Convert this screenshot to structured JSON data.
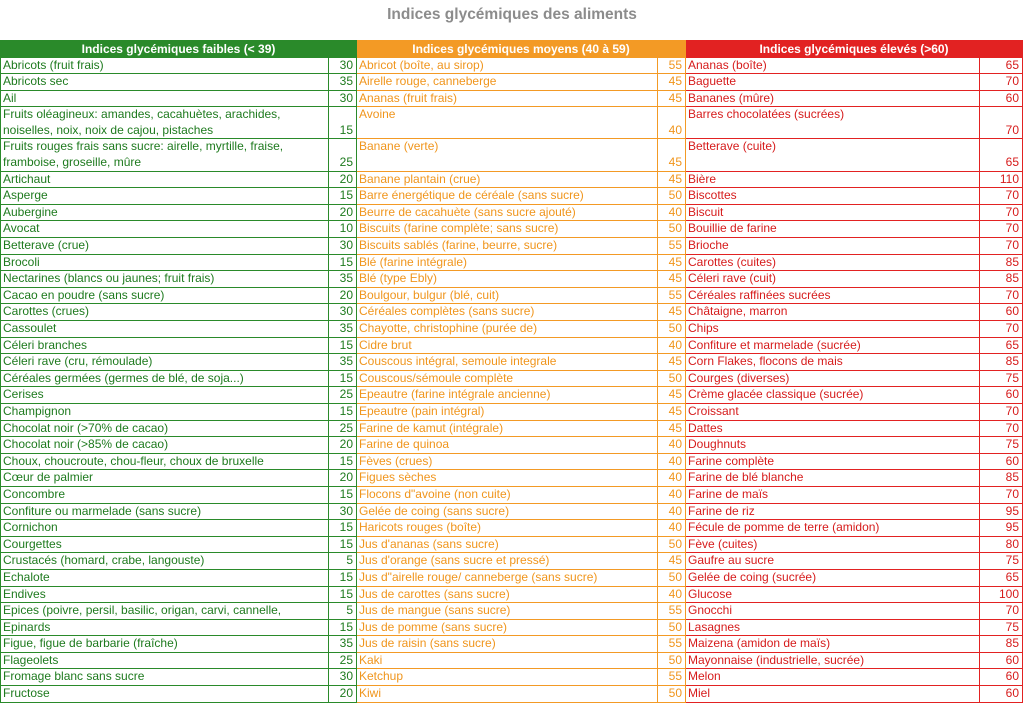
{
  "title": "Indices glycémiques des aliments",
  "colors": {
    "low": "#2a8a2a",
    "medium": "#f39a25",
    "high": "#e22222"
  },
  "headers": {
    "low": "Indices glycémiques faibles (< 39)",
    "medium": "Indices glycémiques moyens (40 à 59)",
    "high": "Indices glycémiques élevés (>60)"
  },
  "rows": [
    {
      "h": 1,
      "low": {
        "name": "Abricots (fruit frais)",
        "value": "30"
      },
      "medium": {
        "name": "Abricot (boîte, au sirop)",
        "value": "55"
      },
      "high": {
        "name": "Ananas (boîte)",
        "value": "65"
      }
    },
    {
      "h": 1,
      "low": {
        "name": "Abricots sec",
        "value": "35"
      },
      "medium": {
        "name": "Airelle rouge, canneberge",
        "value": "45"
      },
      "high": {
        "name": "Baguette",
        "value": "70"
      }
    },
    {
      "h": 1,
      "low": {
        "name": "Ail",
        "value": "30"
      },
      "medium": {
        "name": "Ananas (fruit frais)",
        "value": "45"
      },
      "high": {
        "name": "Bananes (mûre)",
        "value": "60"
      }
    },
    {
      "h": 2,
      "low": {
        "name": "Fruits oléagineux: amandes, cacahuètes, arachides, noiselles, noix, noix de cajou, pistaches",
        "value": "15"
      },
      "medium": {
        "name": "Avoine",
        "value": "40"
      },
      "high": {
        "name": "Barres chocolatées (sucrées)",
        "value": "70"
      }
    },
    {
      "h": 2,
      "low": {
        "name": "Fruits rouges frais sans sucre: airelle, myrtille, fraise, framboise, groseille, mûre",
        "value": "25"
      },
      "medium": {
        "name": "Banane (verte)",
        "value": "45"
      },
      "high": {
        "name": "Betterave (cuite)",
        "value": "65"
      }
    },
    {
      "h": 1,
      "low": {
        "name": "Artichaut",
        "value": "20"
      },
      "medium": {
        "name": "Banane plantain (crue)",
        "value": "45"
      },
      "high": {
        "name": "Bière",
        "value": "110"
      }
    },
    {
      "h": 1,
      "low": {
        "name": "Asperge",
        "value": "15"
      },
      "medium": {
        "name": "Barre énergétique de céréale (sans sucre)",
        "value": "50"
      },
      "high": {
        "name": "Biscottes",
        "value": "70"
      }
    },
    {
      "h": 1,
      "low": {
        "name": "Aubergine",
        "value": "20"
      },
      "medium": {
        "name": "Beurre de cacahuète (sans sucre ajouté)",
        "value": "40"
      },
      "high": {
        "name": "Biscuit",
        "value": "70"
      }
    },
    {
      "h": 1,
      "low": {
        "name": "Avocat",
        "value": "10"
      },
      "medium": {
        "name": "Biscuits (farine complète; sans sucre)",
        "value": "50"
      },
      "high": {
        "name": "Bouillie de farine",
        "value": "70"
      }
    },
    {
      "h": 1,
      "low": {
        "name": "Betterave (crue)",
        "value": "30"
      },
      "medium": {
        "name": "Biscuits sablés (farine, beurre, sucre)",
        "value": "55"
      },
      "high": {
        "name": "Brioche",
        "value": "70"
      }
    },
    {
      "h": 1,
      "low": {
        "name": "Brocoli",
        "value": "15"
      },
      "medium": {
        "name": "Blé (farine intégrale)",
        "value": "45"
      },
      "high": {
        "name": "Carottes (cuites)",
        "value": "85"
      }
    },
    {
      "h": 1,
      "low": {
        "name": "Nectarines (blancs ou jaunes; fruit frais)",
        "value": "35"
      },
      "medium": {
        "name": "Blé (type Ebly)",
        "value": "45"
      },
      "high": {
        "name": "Céleri rave (cuit)",
        "value": "85"
      }
    },
    {
      "h": 1,
      "low": {
        "name": "Cacao en poudre (sans sucre)",
        "value": "20"
      },
      "medium": {
        "name": "Boulgour, bulgur (blé, cuit)",
        "value": "55"
      },
      "high": {
        "name": "Céréales raffinées sucrées",
        "value": "70"
      }
    },
    {
      "h": 1,
      "low": {
        "name": "Carottes (crues)",
        "value": "30"
      },
      "medium": {
        "name": "Céréales complètes (sans sucre)",
        "value": "45"
      },
      "high": {
        "name": "Châtaigne, marron",
        "value": "60"
      }
    },
    {
      "h": 1,
      "low": {
        "name": "Cassoulet",
        "value": "35"
      },
      "medium": {
        "name": "Chayotte, christophine (purée de)",
        "value": "50"
      },
      "high": {
        "name": "Chips",
        "value": "70"
      }
    },
    {
      "h": 1,
      "low": {
        "name": "Céleri branches",
        "value": "15"
      },
      "medium": {
        "name": "Cidre brut",
        "value": "40"
      },
      "high": {
        "name": "Confiture et marmelade (sucrée)",
        "value": "65"
      }
    },
    {
      "h": 1,
      "low": {
        "name": "Céleri rave (cru, rémoulade)",
        "value": "35"
      },
      "medium": {
        "name": "Couscous intégral, semoule integrale",
        "value": "45"
      },
      "high": {
        "name": "Corn Flakes, flocons de mais",
        "value": "85"
      }
    },
    {
      "h": 1,
      "low": {
        "name": "Céréales germées (germes de blé, de soja...)",
        "value": "15"
      },
      "medium": {
        "name": "Couscous/sémoule complète",
        "value": "50"
      },
      "high": {
        "name": "Courges (diverses)",
        "value": "75"
      }
    },
    {
      "h": 1,
      "low": {
        "name": "Cerises",
        "value": "25"
      },
      "medium": {
        "name": "Epeautre (farine intégrale ancienne)",
        "value": "45"
      },
      "high": {
        "name": "Crème glacée classique (sucrée)",
        "value": "60"
      }
    },
    {
      "h": 1,
      "low": {
        "name": "Champignon",
        "value": "15"
      },
      "medium": {
        "name": "Epeautre (pain intégral)",
        "value": "45"
      },
      "high": {
        "name": "Croissant",
        "value": "70"
      }
    },
    {
      "h": 1,
      "low": {
        "name": "Chocolat noir (>70% de cacao)",
        "value": "25"
      },
      "medium": {
        "name": "Farine de kamut (intégrale)",
        "value": "45"
      },
      "high": {
        "name": "Dattes",
        "value": "70"
      }
    },
    {
      "h": 1,
      "low": {
        "name": "Chocolat noir (>85% de cacao)",
        "value": "20"
      },
      "medium": {
        "name": "Farine de quinoa",
        "value": "40"
      },
      "high": {
        "name": "Doughnuts",
        "value": "75"
      }
    },
    {
      "h": 1,
      "low": {
        "name": "Choux, choucroute, chou-fleur, choux de bruxelle",
        "value": "15"
      },
      "medium": {
        "name": "Fèves (crues)",
        "value": "40"
      },
      "high": {
        "name": "Farine complète",
        "value": "60"
      }
    },
    {
      "h": 1,
      "low": {
        "name": "Cœur de palmier",
        "value": "20"
      },
      "medium": {
        "name": "Figues sèches",
        "value": "40"
      },
      "high": {
        "name": "Farine de blé blanche",
        "value": "85"
      }
    },
    {
      "h": 1,
      "low": {
        "name": "Concombre",
        "value": "15"
      },
      "medium": {
        "name": "Flocons d\"avoine (non cuite)",
        "value": "40"
      },
      "high": {
        "name": "Farine de maïs",
        "value": "70"
      }
    },
    {
      "h": 1,
      "low": {
        "name": "Confiture ou marmelade (sans sucre)",
        "value": "30"
      },
      "medium": {
        "name": "Gelée de coing (sans sucre)",
        "value": "40"
      },
      "high": {
        "name": "Farine de riz",
        "value": "95"
      }
    },
    {
      "h": 1,
      "low": {
        "name": "Cornichon",
        "value": "15"
      },
      "medium": {
        "name": "Haricots rouges (boîte)",
        "value": "40"
      },
      "high": {
        "name": "Fécule de pomme de terre (amidon)",
        "value": "95"
      }
    },
    {
      "h": 1,
      "low": {
        "name": "Courgettes",
        "value": "15"
      },
      "medium": {
        "name": "Jus d'ananas (sans sucre)",
        "value": "50"
      },
      "high": {
        "name": "Fève (cuites)",
        "value": "80"
      }
    },
    {
      "h": 1,
      "low": {
        "name": "Crustacés (homard, crabe, langouste)",
        "value": "5"
      },
      "medium": {
        "name": "Jus d'orange (sans sucre et pressé)",
        "value": "45"
      },
      "high": {
        "name": "Gaufre au sucre",
        "value": "75"
      }
    },
    {
      "h": 1,
      "low": {
        "name": "Echalote",
        "value": "15"
      },
      "medium": {
        "name": "Jus d\"airelle rouge/ canneberge (sans sucre)",
        "value": "50"
      },
      "high": {
        "name": "Gelée de coing (sucrée)",
        "value": "65"
      }
    },
    {
      "h": 1,
      "low": {
        "name": "Endives",
        "value": "15"
      },
      "medium": {
        "name": "Jus de carottes (sans sucre)",
        "value": "40"
      },
      "high": {
        "name": "Glucose",
        "value": "100"
      }
    },
    {
      "h": 1,
      "low": {
        "name": "Epices (poivre, persil, basilic, origan, carvi, cannelle,",
        "value": "5"
      },
      "medium": {
        "name": "Jus de mangue (sans sucre)",
        "value": "55"
      },
      "high": {
        "name": "Gnocchi",
        "value": "70"
      }
    },
    {
      "h": 1,
      "low": {
        "name": "Epinards",
        "value": "15"
      },
      "medium": {
        "name": "Jus de pomme (sans sucre)",
        "value": "50"
      },
      "high": {
        "name": "Lasagnes",
        "value": "75"
      }
    },
    {
      "h": 1,
      "low": {
        "name": "Figue, figue de barbarie (fraîche)",
        "value": "35"
      },
      "medium": {
        "name": "Jus de raisin (sans sucre)",
        "value": "55"
      },
      "high": {
        "name": "Maizena (amidon de maïs)",
        "value": "85"
      }
    },
    {
      "h": 1,
      "low": {
        "name": "Flageolets",
        "value": "25"
      },
      "medium": {
        "name": "Kaki",
        "value": "50"
      },
      "high": {
        "name": "Mayonnaise (industrielle, sucrée)",
        "value": "60"
      }
    },
    {
      "h": 1,
      "low": {
        "name": "Fromage blanc sans sucre",
        "value": "30"
      },
      "medium": {
        "name": "Ketchup",
        "value": "55"
      },
      "high": {
        "name": "Melon",
        "value": "60"
      }
    },
    {
      "h": 1,
      "low": {
        "name": "Fructose",
        "value": "20"
      },
      "medium": {
        "name": "Kiwi",
        "value": "50"
      },
      "high": {
        "name": "Miel",
        "value": "60"
      }
    }
  ]
}
